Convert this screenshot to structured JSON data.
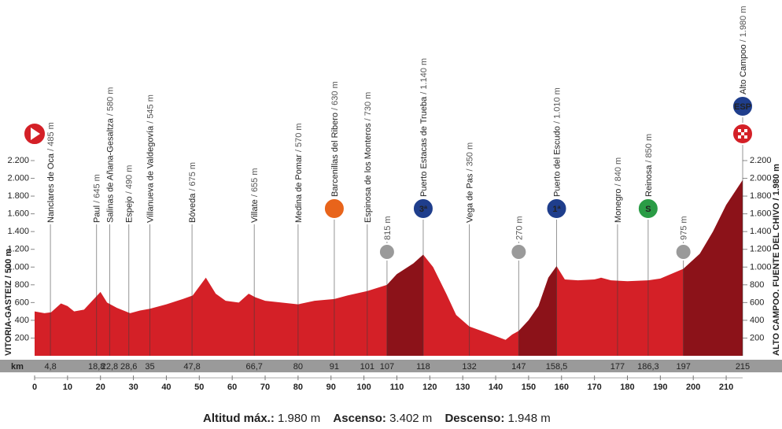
{
  "chart_data": {
    "type": "area",
    "color": "#d42027",
    "climb_color": "#8c1219",
    "x": [
      0,
      3,
      5,
      8,
      10,
      12,
      15,
      18,
      20,
      22,
      25,
      29,
      32,
      35,
      40,
      45,
      48,
      52,
      55,
      58,
      62,
      65,
      67,
      70,
      80,
      85,
      91,
      95,
      101,
      107,
      110,
      115,
      118,
      121,
      125,
      128,
      132,
      138,
      143,
      145,
      147,
      150,
      153,
      156,
      158.5,
      161,
      165,
      170,
      172,
      175,
      180,
      186.3,
      190,
      197,
      202,
      206,
      210,
      215
    ],
    "values": [
      500,
      480,
      490,
      590,
      560,
      500,
      520,
      640,
      720,
      600,
      540,
      480,
      510,
      530,
      580,
      640,
      680,
      880,
      700,
      620,
      600,
      700,
      660,
      620,
      580,
      620,
      640,
      680,
      730,
      800,
      920,
      1040,
      1140,
      1000,
      700,
      460,
      330,
      250,
      180,
      240,
      280,
      400,
      560,
      880,
      1010,
      860,
      850,
      860,
      880,
      850,
      840,
      850,
      870,
      980,
      1150,
      1400,
      1700,
      1980
    ],
    "xlim": [
      0,
      215
    ],
    "ylim": [
      0,
      2200
    ],
    "xticks": [
      0,
      10,
      20,
      30,
      40,
      50,
      60,
      70,
      80,
      90,
      100,
      110,
      120,
      130,
      140,
      150,
      160,
      170,
      180,
      190,
      200,
      210
    ],
    "yticks": [
      200,
      400,
      600,
      800,
      {
        "value": 1000,
        "label": "1.000"
      },
      {
        "value": 1200,
        "label": "1.200"
      },
      {
        "value": 1400,
        "label": "1.400"
      },
      {
        "value": 1600,
        "label": "1.600"
      },
      {
        "value": 1800,
        "label": "1.800"
      },
      {
        "value": 2000,
        "label": "2.000"
      },
      {
        "value": 2200,
        "label": "2.200"
      }
    ],
    "km_label": "km",
    "start_label": "VITORIA-GASTEIZ / 500 m",
    "finish_label": "ALTO CAMPOO. FUENTE DEL CHIVO / 1.980 m",
    "waypoints": [
      {
        "km": {
          "value": 4.8,
          "label": "4,8"
        },
        "name": "Nanclares de Oca",
        "elevation": "/ 485 m",
        "type": "town"
      },
      {
        "km": {
          "value": 18.8,
          "label": "18,8"
        },
        "name": "Paul",
        "elevation": "/ 645 m",
        "type": "town"
      },
      {
        "km": {
          "value": 22.8,
          "label": "22,8"
        },
        "name": "Salinas de Añana-Gesaltza",
        "elevation": "/ 580 m",
        "type": "town"
      },
      {
        "km": {
          "value": 28.6,
          "label": "28,6"
        },
        "name": "Espejo",
        "elevation": "/ 490 m",
        "type": "town"
      },
      {
        "km": 35,
        "name": "Villanueva de Valdegovía",
        "elevation": "/ 545 m",
        "type": "town"
      },
      {
        "km": {
          "value": 47.8,
          "label": "47,8"
        },
        "name": "Bóveda",
        "elevation": "/ 675 m",
        "type": "town"
      },
      {
        "km": {
          "value": 66.7,
          "label": "66,7"
        },
        "name": "Villate",
        "elevation": "/ 655 m",
        "type": "town"
      },
      {
        "km": 80,
        "name": "Medina de Pomar",
        "elevation": "/ 570 m",
        "type": "town"
      },
      {
        "km": 91,
        "name": "Barcenillas del Ribero",
        "elevation": "/ 630 m",
        "type": "feed"
      },
      {
        "km": 101,
        "name": "Espinosa de los Monteros",
        "elevation": "/ 730 m",
        "type": "town"
      },
      {
        "km": 107,
        "elevation": "815 m",
        "type": "marker"
      },
      {
        "km": 118,
        "name": "Puerto Estacas de Trueba",
        "elevation": "/ 1.140 m",
        "type": "climb",
        "icon": "3ª"
      },
      {
        "km": 132,
        "name": "Vega de Pas",
        "elevation": "/ 350 m",
        "type": "town"
      },
      {
        "km": 147,
        "elevation": "270 m",
        "type": "marker"
      },
      {
        "km": {
          "value": 158.5,
          "label": "158,5"
        },
        "name": "Puerto del Escudo",
        "elevation": "/ 1.010 m",
        "type": "climb",
        "icon": "1ª"
      },
      {
        "km": 177,
        "name": "Monegro",
        "elevation": "/ 840 m",
        "type": "town"
      },
      {
        "km": {
          "value": 186.3,
          "label": "186,3"
        },
        "name": "Reinosa",
        "elevation": "/ 850 m",
        "type": "sprint",
        "icon": "S"
      },
      {
        "km": 197,
        "elevation": "975 m",
        "type": "marker"
      },
      {
        "km": 215,
        "name": "Alto Campoo",
        "elevation": "/ 1.980 m",
        "type": "climb",
        "icon": "ESP"
      }
    ]
  },
  "footer": {
    "max_label": "Altitud máx.:",
    "max_value": "1.980 m",
    "ascent_label": "Ascenso:",
    "ascent_value": "3.402 m",
    "descent_label": "Descenso:",
    "descent_value": "1.948 m"
  }
}
